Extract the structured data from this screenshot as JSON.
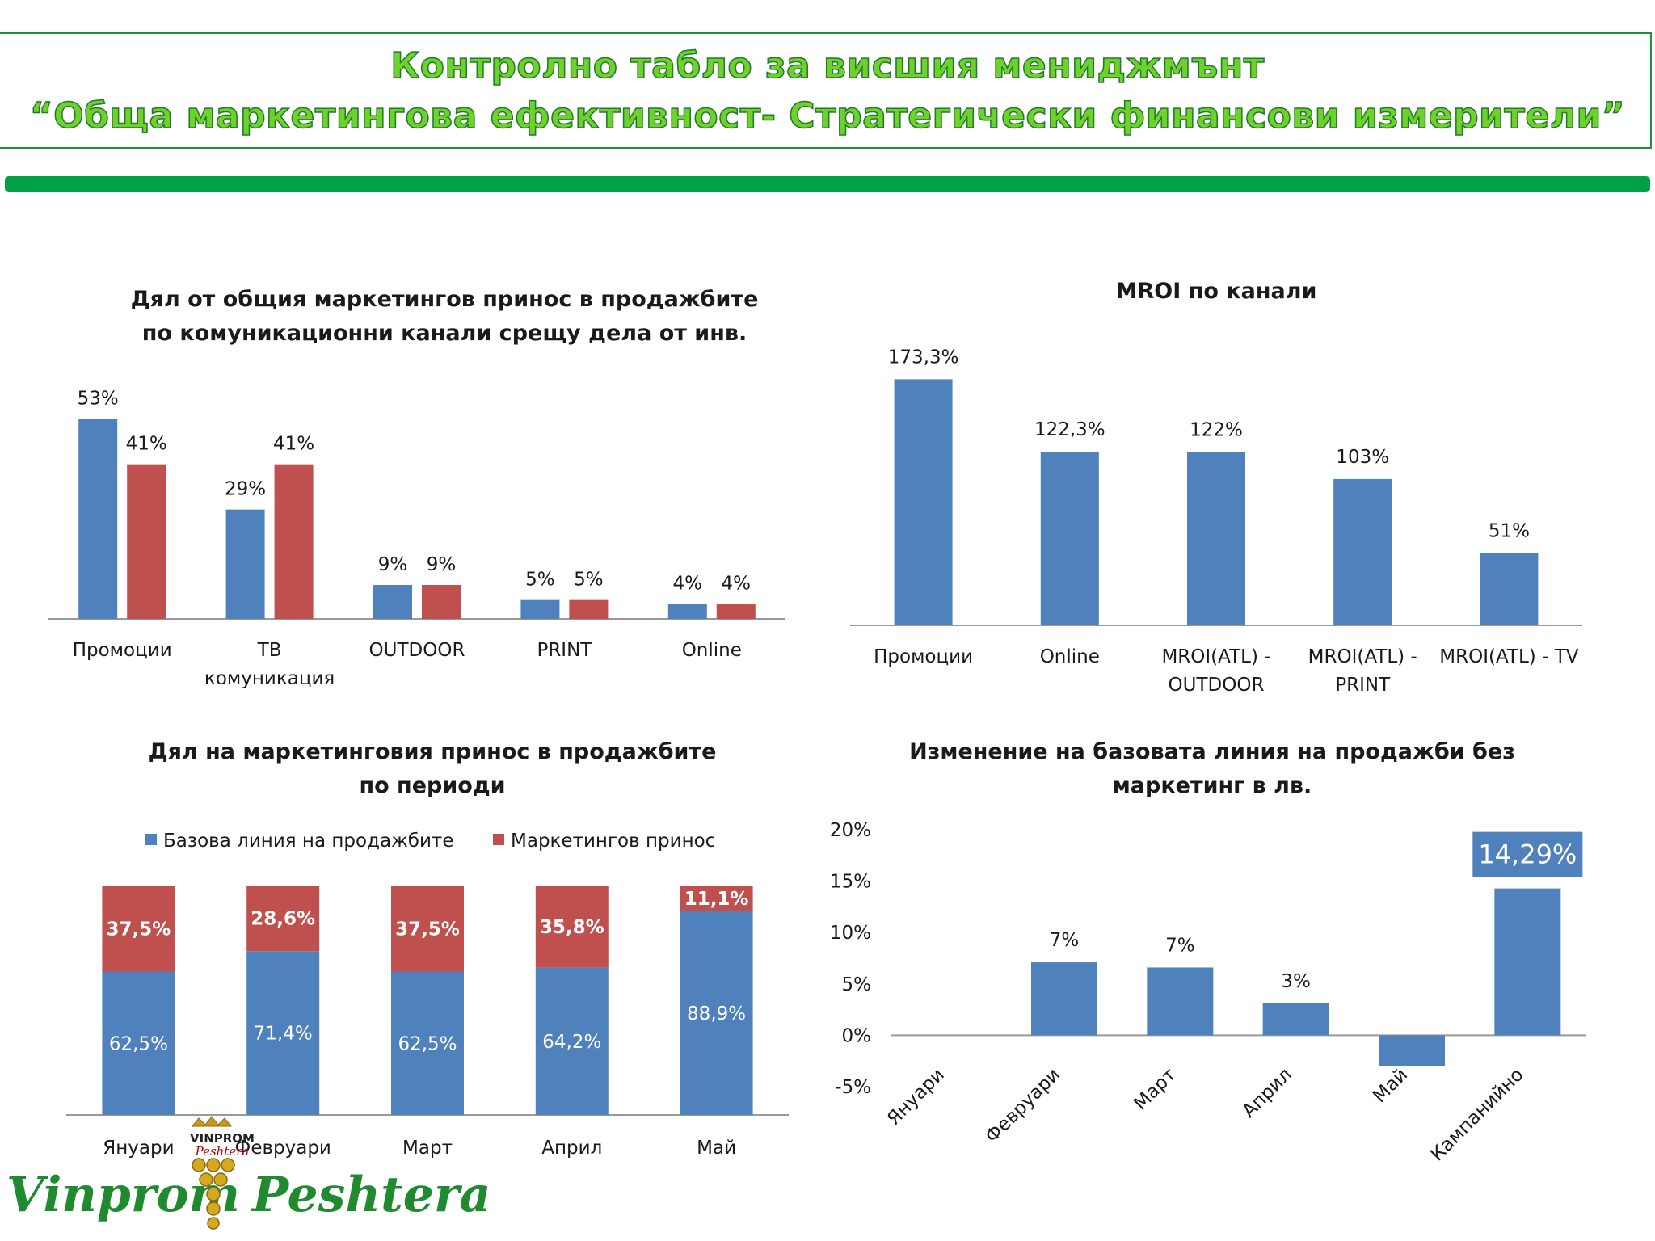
{
  "header": {
    "line1": "Контролно табло за висшия мениджмънт",
    "line2": "“Обща маркетингова ефективност- Стратегически финансови измерители”"
  },
  "colors": {
    "blue": "#4f81bd",
    "red": "#c0504d",
    "green": "#00a046"
  },
  "logo": {
    "left_word": "Vinprom",
    "right_word": "Peshtera",
    "small_top": "VINPROM",
    "small_script": "Peshtera"
  },
  "chart_data": [
    {
      "type": "bar",
      "title_lines": [
        "Дял от общия маркетингов принос в продажбите",
        "по комуникационни канали срещу дела от инв."
      ],
      "categories": [
        [
          "Промоции"
        ],
        [
          "ТВ",
          "комуникация"
        ],
        [
          "OUTDOOR"
        ],
        [
          "PRINT"
        ],
        [
          "Online"
        ]
      ],
      "series": [
        {
          "values": [
            53,
            29,
            9,
            5,
            4
          ],
          "labels": [
            "53%",
            "29%",
            "9%",
            "5%",
            "4%"
          ],
          "color": "#4f81bd"
        },
        {
          "values": [
            41,
            41,
            9,
            5,
            4
          ],
          "labels": [
            "41%",
            "41%",
            "9%",
            "5%",
            "4%"
          ],
          "color": "#c0504d"
        }
      ],
      "ylim": [
        0,
        60
      ]
    },
    {
      "type": "bar",
      "title_lines": [
        "MROI по канали"
      ],
      "categories": [
        [
          "Промоции"
        ],
        [
          "Online"
        ],
        [
          "MROI(ATL) -",
          "OUTDOOR"
        ],
        [
          "MROI(ATL) -",
          "PRINT"
        ],
        [
          "MROI(ATL) - TV"
        ]
      ],
      "values": [
        173.3,
        122.3,
        122,
        103,
        51
      ],
      "labels": [
        "173,3%",
        "122,3%",
        "122%",
        "103%",
        "51%"
      ],
      "color": "#4f81bd",
      "ylim": [
        0,
        190
      ]
    },
    {
      "type": "bar",
      "stacked": true,
      "title_lines": [
        "Дял на маркетинговия принос в продажбите",
        "по периоди"
      ],
      "categories": [
        "Януари",
        "Февруари",
        "Март",
        "Април",
        "Май"
      ],
      "series": [
        {
          "name": "Базова линия на продажбите",
          "values": [
            62.5,
            71.4,
            62.5,
            64.2,
            88.9
          ],
          "labels": [
            "62,5%",
            "71,4%",
            "62,5%",
            "64,2%",
            "88,9%"
          ],
          "color": "#4f81bd"
        },
        {
          "name": "Маркетингов принос",
          "values": [
            37.5,
            28.6,
            37.5,
            35.8,
            11.1
          ],
          "labels": [
            "37,5%",
            "28,6%",
            "37,5%",
            "35,8%",
            "11,1%"
          ],
          "color": "#c0504d"
        }
      ],
      "legend": "top",
      "ylim": [
        0,
        100
      ]
    },
    {
      "type": "bar",
      "title_lines": [
        "Изменение на базовата линия на продажби без",
        "маркетинг  в лв."
      ],
      "categories": [
        "Януари",
        "Февруари",
        "Март",
        "Април",
        "Май",
        "Кампанийно"
      ],
      "values": [
        0,
        7.1,
        6.6,
        3.1,
        -3,
        14.29
      ],
      "labels": [
        "",
        "7%",
        "7%",
        "3%",
        "",
        "14,29%"
      ],
      "highlight_label_index": 5,
      "color": "#4f81bd",
      "ylim": [
        -5,
        20
      ],
      "yticks": [
        20,
        15,
        10,
        5,
        0,
        -5
      ],
      "ytick_labels": [
        "20%",
        "15%",
        "10%",
        "5%",
        "0%",
        "-5%"
      ]
    }
  ]
}
